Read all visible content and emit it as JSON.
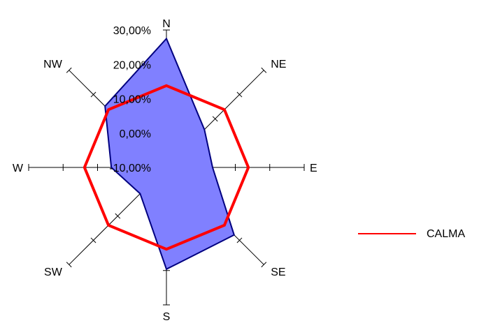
{
  "chart_data": {
    "type": "radar",
    "directions": [
      "N",
      "NE",
      "E",
      "SE",
      "S",
      "SW",
      "W",
      "NW"
    ],
    "radial_ticks": [
      "30,00%",
      "20,00%",
      "10,00%",
      "0,00%",
      "-10,00%"
    ],
    "rlim": [
      -10,
      30
    ],
    "series": [
      {
        "name": "",
        "type": "filled",
        "fill_color": "#8080ff",
        "stroke_color": "#000080",
        "values": [
          27.5,
          5.6,
          3.4,
          17.8,
          19.6,
          0.8,
          6.0,
          15.2
        ]
      },
      {
        "name": "CALMA",
        "type": "line",
        "stroke_color": "#ff0000",
        "values": [
          13.8,
          13.8,
          13.8,
          13.8,
          13.8,
          13.8,
          13.8,
          13.8
        ]
      }
    ],
    "legend": {
      "position": "right",
      "label": "CALMA",
      "color": "#ff0000"
    },
    "grid": false
  }
}
